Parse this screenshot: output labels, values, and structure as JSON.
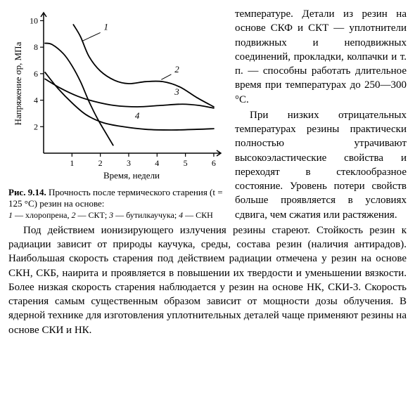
{
  "chart": {
    "type": "line",
    "xlim": [
      0,
      6.2
    ],
    "ylim": [
      0,
      10.5
    ],
    "xticks": [
      1,
      2,
      3,
      4,
      5,
      6
    ],
    "yticks": [
      2,
      4,
      6,
      8,
      10
    ],
    "xlabel": "Время, недели",
    "ylabel": "Напряжение σр, МПа",
    "background_color": "#ffffff",
    "axis_color": "#000000",
    "line_color": "#000000",
    "line_width": 1.8,
    "series": {
      "1": {
        "label": "1",
        "points": [
          [
            0.05,
            8.3
          ],
          [
            0.3,
            8.2
          ],
          [
            0.7,
            7.5
          ],
          [
            1.0,
            6.6
          ],
          [
            1.3,
            5.4
          ],
          [
            1.6,
            3.9
          ],
          [
            1.9,
            2.6
          ],
          [
            2.2,
            1.5
          ],
          [
            2.45,
            0.6
          ]
        ]
      },
      "2": {
        "label": "2",
        "points": [
          [
            1.05,
            9.7
          ],
          [
            1.3,
            8.8
          ],
          [
            1.6,
            7.3
          ],
          [
            2.0,
            6.2
          ],
          [
            2.5,
            5.5
          ],
          [
            3.0,
            5.25
          ],
          [
            3.6,
            5.4
          ],
          [
            4.2,
            5.4
          ],
          [
            4.8,
            5.0
          ],
          [
            5.4,
            4.2
          ],
          [
            6.0,
            3.5
          ]
        ]
      },
      "3": {
        "label": "3",
        "points": [
          [
            0.05,
            5.6
          ],
          [
            0.6,
            4.9
          ],
          [
            1.2,
            4.3
          ],
          [
            1.8,
            3.9
          ],
          [
            2.5,
            3.6
          ],
          [
            3.3,
            3.5
          ],
          [
            4.1,
            3.6
          ],
          [
            4.9,
            3.7
          ],
          [
            5.5,
            3.6
          ],
          [
            6.0,
            3.4
          ]
        ]
      },
      "4": {
        "label": "4",
        "points": [
          [
            0.05,
            6.1
          ],
          [
            0.5,
            4.9
          ],
          [
            1.0,
            3.8
          ],
          [
            1.5,
            2.9
          ],
          [
            2.1,
            2.3
          ],
          [
            2.8,
            2.0
          ],
          [
            3.6,
            1.8
          ],
          [
            4.5,
            1.75
          ],
          [
            5.4,
            1.8
          ],
          [
            6.0,
            1.85
          ]
        ]
      }
    },
    "curve_label_positions": {
      "1": {
        "x": 2.2,
        "y": 9.3
      },
      "2": {
        "x": 4.7,
        "y": 6.1
      },
      "3": {
        "x": 4.7,
        "y": 4.4
      },
      "4": {
        "x": 3.3,
        "y": 2.6
      }
    },
    "curve_label_connectors": {
      "1": [
        [
          2.0,
          9.1
        ],
        [
          1.35,
          8.45
        ]
      ],
      "2": [
        [
          4.5,
          5.95
        ],
        [
          4.15,
          5.55
        ]
      ]
    }
  },
  "caption": {
    "title_prefix": "Рис. 9.14.",
    "title_rest": " Прочность после термического старения (t = 125 °С) резин на основе:",
    "legend_html": "1 — хлоропрена, 2 — СКТ; 3 — бутилкаучука; 4 — СКН"
  },
  "paragraphs": {
    "p1": "температуре. Детали из резин на основе СКФ и СКТ — уплотнители подвижных и неподвижных соединений, прокладки, колпачки и т. п. — способны работать длительное время при температурах до 250—300 °С.",
    "p2": "При низких отрицательных температурах резины практически полностью утрачивают высокоэластические свойства и переходят в стеклообразное состояние. Уровень потери свойств больше проявляется в условиях сдвига, чем сжатия или растяжения.",
    "p3": "Под действием ионизирующего излучения резины стареют. Стойкость резин к радиации зависит от природы каучука, среды, состава резин (наличия антирадов). Наибольшая скорость старения под действием радиации отмечена у резин на основе СКН, СКБ, наирита и проявляется в повышении их твердости и уменьшении вязкости. Более низкая скорость старения наблюдается у резин на основе НК, СКИ-3. Скорость старения самым существенным образом зависит от мощности дозы облучения. В ядерной технике для изготовления уплотнительных деталей чаще применяют резины на основе СКИ и НК."
  }
}
